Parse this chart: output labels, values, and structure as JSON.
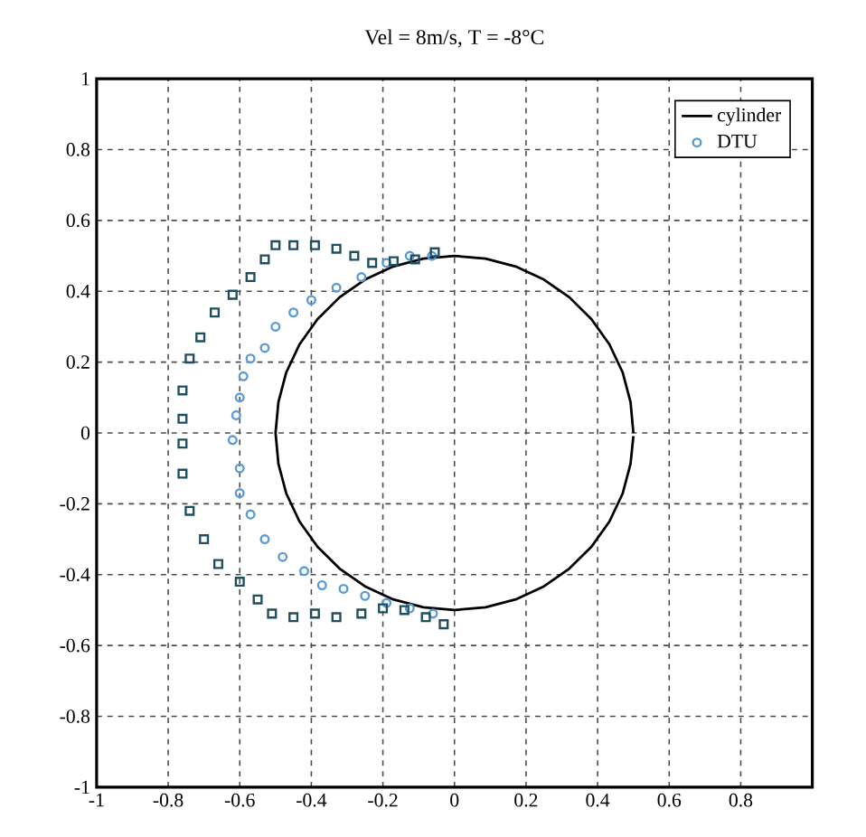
{
  "chart_data": {
    "type": "scatter",
    "title": "Vel = 8m/s, T = -8°C",
    "xlim": [
      -1,
      1
    ],
    "ylim": [
      -1,
      1
    ],
    "xticks": [
      -1,
      -0.8,
      -0.6,
      -0.4,
      -0.2,
      0,
      0.2,
      0.4,
      0.6,
      0.8
    ],
    "yticks": [
      -1,
      -0.8,
      -0.6,
      -0.4,
      -0.2,
      0,
      0.2,
      0.4,
      0.6,
      0.8,
      1
    ],
    "grid": true,
    "legend": "top right",
    "series": [
      {
        "name": "cylinder",
        "type": "line",
        "color": "#000000",
        "marker": "none",
        "line_style": "solid",
        "x": [
          0.5,
          0.492,
          0.47,
          0.433,
          0.383,
          0.321,
          0.25,
          0.171,
          0.087,
          0,
          -0.087,
          -0.171,
          -0.25,
          -0.321,
          -0.383,
          -0.433,
          -0.47,
          -0.492,
          -0.5,
          -0.492,
          -0.47,
          -0.433,
          -0.383,
          -0.321,
          -0.25,
          -0.171,
          -0.087,
          0,
          0.087,
          0.171,
          0.25,
          0.321,
          0.383,
          0.433,
          0.47,
          0.492,
          0.5
        ],
        "values": [
          0,
          0.087,
          0.171,
          0.25,
          0.321,
          0.383,
          0.433,
          0.47,
          0.492,
          0.5,
          0.492,
          0.47,
          0.433,
          0.383,
          0.321,
          0.25,
          0.171,
          0.087,
          0,
          -0.087,
          -0.171,
          -0.25,
          -0.321,
          -0.383,
          -0.433,
          -0.47,
          -0.492,
          -0.5,
          -0.492,
          -0.47,
          -0.433,
          -0.383,
          -0.321,
          -0.25,
          -0.171,
          -0.087,
          -0.009
        ]
      },
      {
        "name": "DTU",
        "color": "#5b9bd5",
        "marker": "circle",
        "x": [
          -0.063,
          -0.125,
          -0.19,
          -0.26,
          -0.33,
          -0.4,
          -0.45,
          -0.5,
          -0.53,
          -0.57,
          -0.59,
          -0.6,
          -0.61,
          -0.62,
          -0.6,
          -0.6,
          -0.57,
          -0.53,
          -0.48,
          -0.42,
          -0.37,
          -0.31,
          -0.25,
          -0.19,
          -0.125,
          -0.06
        ],
        "values": [
          0.5,
          0.5,
          0.48,
          0.44,
          0.41,
          0.375,
          0.34,
          0.3,
          0.24,
          0.21,
          0.16,
          0.1,
          0.05,
          -0.02,
          -0.1,
          -0.17,
          -0.23,
          -0.3,
          -0.35,
          -0.39,
          -0.43,
          -0.44,
          -0.46,
          -0.48,
          -0.495,
          -0.51
        ]
      },
      {
        "color": "#1f4e5f",
        "marker": "square",
        "x": [
          -0.055,
          -0.11,
          -0.17,
          -0.23,
          -0.28,
          -0.33,
          -0.39,
          -0.45,
          -0.5,
          -0.53,
          -0.57,
          -0.62,
          -0.67,
          -0.71,
          -0.74,
          -0.76,
          -0.76,
          -0.76,
          -0.76,
          -0.74,
          -0.7,
          -0.66,
          -0.6,
          -0.55,
          -0.51,
          -0.45,
          -0.39,
          -0.33,
          -0.26,
          -0.2,
          -0.14,
          -0.08,
          -0.03
        ],
        "values": [
          0.51,
          0.49,
          0.485,
          0.48,
          0.5,
          0.52,
          0.53,
          0.53,
          0.53,
          0.49,
          0.44,
          0.39,
          0.34,
          0.27,
          0.21,
          0.12,
          0.04,
          -0.03,
          -0.115,
          -0.22,
          -0.3,
          -0.37,
          -0.42,
          -0.47,
          -0.51,
          -0.52,
          -0.51,
          -0.52,
          -0.51,
          -0.495,
          -0.5,
          -0.52,
          -0.54
        ]
      }
    ]
  }
}
